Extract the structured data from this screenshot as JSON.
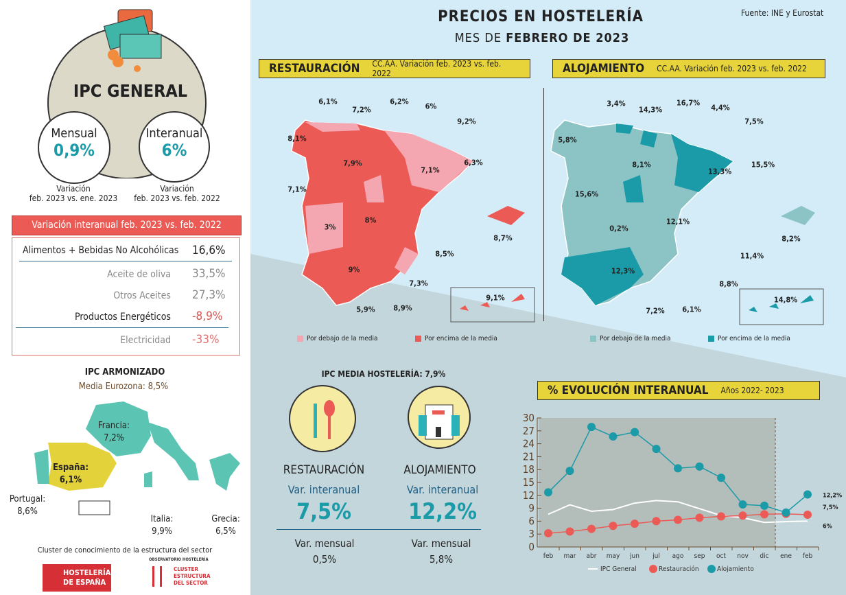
{
  "header": {
    "title": "PRECIOS EN HOSTELERÍA",
    "subtitle_prefix": "MES DE ",
    "subtitle_bold": "FEBRERO DE 2023",
    "source": "Fuente: INE y Eurostat"
  },
  "ipc_general": {
    "title": "IPC GENERAL",
    "mensual_label": "Mensual",
    "mensual_value": "0,9%",
    "interanual_label": "Interanual",
    "interanual_value": "6%",
    "mensual_note_1": "Variación",
    "mensual_note_2": "feb. 2023 vs. ene. 2023",
    "interanual_note_1": "Variación",
    "interanual_note_2": "feb. 2023 vs. feb. 2022"
  },
  "variation_table": {
    "title": "Variación interanual feb. 2023 vs. feb. 2022",
    "rows": [
      {
        "label": "Alimentos + Bebidas No Alcohólicas",
        "value": "16,6%"
      },
      {
        "label": "Aceite de oliva",
        "value": "33,5%"
      },
      {
        "label": "Otros Aceites",
        "value": "27,3%"
      },
      {
        "label": "Productos Energéticos",
        "value": "-8,9%"
      },
      {
        "label": "Electricidad",
        "value": "-33%"
      }
    ]
  },
  "ipc_armonizado": {
    "title": "IPC ARMONIZADO",
    "subtitle": "Media Eurozona: 8,5%",
    "countries": [
      {
        "name": "Francia:",
        "value": "7,2%"
      },
      {
        "name": "España:",
        "value": "6,1%"
      },
      {
        "name": "Portugal:",
        "value": "8,6%"
      },
      {
        "name": "Italia:",
        "value": "9,9%"
      },
      {
        "name": "Grecia:",
        "value": "6,5%"
      }
    ]
  },
  "footer": {
    "cluster_text": "Cluster de conocimiento de la estructura del sector",
    "logo1": "HOSTELERÍA DE ESPAÑA",
    "logo2_top": "OBSERVATORIO HOSTELERÍA",
    "logo2_l1": "CLUSTER",
    "logo2_l2": "ESTRUCTURA",
    "logo2_l3": "DEL SECTOR"
  },
  "restauracion_map": {
    "title": "RESTAURACIÓN",
    "subtitle": "CC.AA. Variación feb. 2023 vs. feb. 2022",
    "labels": [
      "6,1%",
      "7,2%",
      "6,2%",
      "6%",
      "9,2%",
      "8,1%",
      "7,9%",
      "7,1%",
      "6,3%",
      "7,1%",
      "3%",
      "8%",
      "8,7%",
      "8,5%",
      "9%",
      "7,3%",
      "5,9%",
      "8,9%",
      "9,1%"
    ],
    "legend_below": "Por debajo de la media",
    "legend_above": "Por encima de la media",
    "color_below": "#f4a7b0",
    "color_above": "#ec5a55"
  },
  "alojamiento_map": {
    "title": "ALOJAMIENTO",
    "subtitle": "CC.AA. Variación feb. 2023 vs. feb. 2022",
    "labels": [
      "3,4%",
      "14,3%",
      "16,7%",
      "4,4%",
      "7,5%",
      "5,8%",
      "8,1%",
      "13,3%",
      "15,5%",
      "15,6%",
      "0,2%",
      "12,1%",
      "8,2%",
      "11,4%",
      "12,3%",
      "8,8%",
      "7,2%",
      "6,1%",
      "14,8%"
    ],
    "legend_below": "Por debajo de la media",
    "legend_above": "Por encima de la media",
    "color_below": "#8cc4c6",
    "color_above": "#1b9aa8"
  },
  "ipc_hosteleria": {
    "title": "IPC MEDIA HOSTELERÍA: 7,9%",
    "restauracion": {
      "title": "RESTAURACIÓN",
      "interanual_label": "Var. interanual",
      "interanual_value": "7,5%",
      "mensual_label": "Var. mensual",
      "mensual_value": "0,5%"
    },
    "alojamiento": {
      "title": "ALOJAMIENTO",
      "interanual_label": "Var. interanual",
      "interanual_value": "12,2%",
      "mensual_label": "Var. mensual",
      "mensual_value": "5,8%"
    }
  },
  "chart_data": {
    "type": "line",
    "title": "% EVOLUCIÓN INTERANUAL",
    "subtitle": "Años 2022- 2023",
    "categories": [
      "feb",
      "mar",
      "abr",
      "may",
      "jun",
      "jul",
      "ago",
      "sep",
      "oct",
      "nov",
      "dic",
      "ene",
      "feb"
    ],
    "ylim": [
      0,
      30
    ],
    "yticks": [
      0,
      3,
      6,
      9,
      12,
      15,
      18,
      21,
      24,
      27,
      30
    ],
    "legend_placement": "bottom",
    "series": [
      {
        "name": "IPC General",
        "color": "#ffffff",
        "values": [
          7.6,
          9.8,
          8.3,
          8.7,
          10.2,
          10.8,
          10.5,
          8.9,
          7.3,
          6.8,
          5.7,
          5.9,
          6.0
        ],
        "end_label": "6%"
      },
      {
        "name": "Restauración",
        "color": "#ec5a55",
        "values": [
          3.2,
          3.6,
          4.2,
          4.9,
          5.4,
          6.0,
          6.3,
          6.8,
          7.1,
          7.3,
          7.6,
          7.7,
          7.5
        ],
        "end_label": "7,5%"
      },
      {
        "name": "Alojamiento",
        "color": "#1b9aa8",
        "values": [
          12.7,
          17.7,
          27.9,
          25.7,
          26.7,
          22.8,
          18.3,
          18.7,
          16.1,
          9.9,
          9.6,
          8.0,
          12.2
        ],
        "end_label": "12,2%"
      }
    ]
  }
}
